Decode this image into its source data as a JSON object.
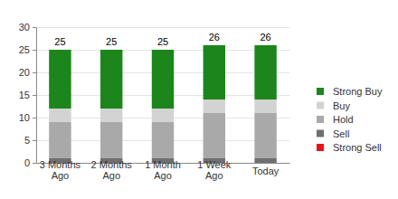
{
  "chart_data": {
    "type": "bar",
    "stacked": true,
    "grid": true,
    "legend": "right",
    "categories": [
      "3 Months Ago",
      "2 Months Ago",
      "1 Month Ago",
      "1 Week Ago",
      "Today"
    ],
    "series": [
      {
        "name": "Strong Sell",
        "color": "#e8131a",
        "values": [
          0,
          0,
          0,
          0,
          0
        ]
      },
      {
        "name": "Sell",
        "color": "#6f6f6f",
        "values": [
          1,
          1,
          1,
          1,
          1
        ]
      },
      {
        "name": "Hold",
        "color": "#a9a9a9",
        "values": [
          8,
          8,
          8,
          10,
          10
        ]
      },
      {
        "name": "Buy",
        "color": "#d3d3d3",
        "values": [
          3,
          3,
          3,
          3,
          3
        ]
      },
      {
        "name": "Strong Buy",
        "color": "#1c861c",
        "values": [
          13,
          13,
          13,
          12,
          12
        ]
      }
    ],
    "totals": [
      25,
      25,
      25,
      26,
      26
    ],
    "ylim": [
      0,
      30
    ],
    "yticks": [
      0,
      5,
      10,
      15,
      20,
      25,
      30
    ]
  }
}
